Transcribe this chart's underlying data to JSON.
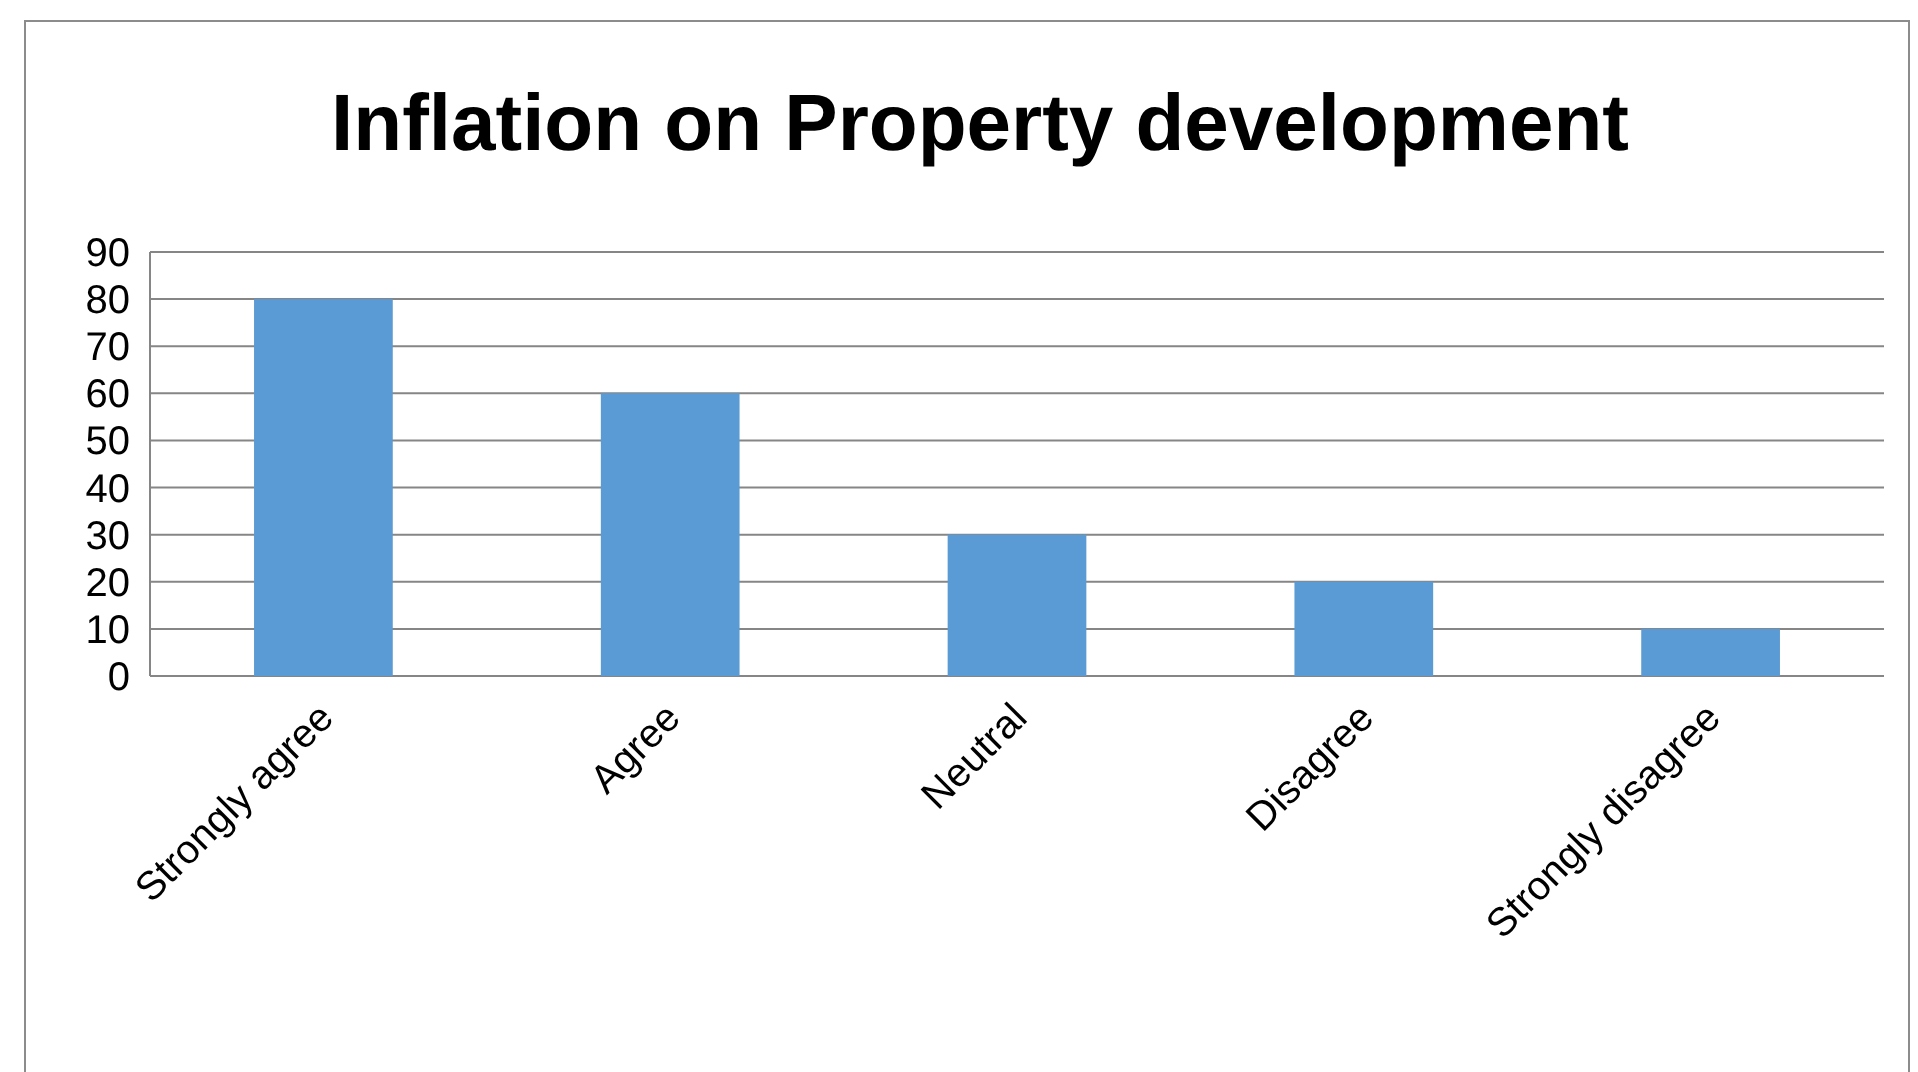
{
  "chart_data": {
    "type": "bar",
    "title": "Inflation on Property development",
    "categories": [
      "Strongly agree",
      "Agree",
      "Neutral",
      "Disagree",
      "Strongly disagree"
    ],
    "values": [
      80,
      60,
      30,
      20,
      10
    ],
    "color": "#5b9bd5",
    "ylim": [
      0,
      90
    ],
    "yticks": [
      0,
      10,
      20,
      30,
      40,
      50,
      60,
      70,
      80,
      90
    ],
    "grid": "y"
  }
}
